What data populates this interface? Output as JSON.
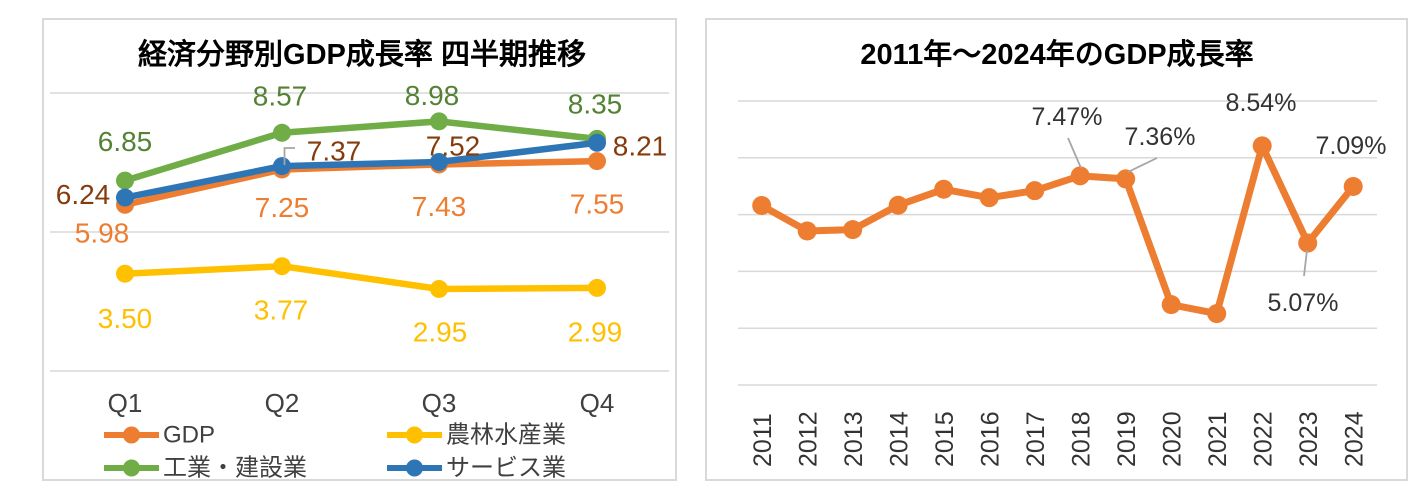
{
  "chart_data": [
    {
      "type": "line",
      "title": "経済分野別GDP成長率 四半期推移",
      "categories": [
        "Q1",
        "Q2",
        "Q3",
        "Q4"
      ],
      "series": [
        {
          "name": "GDP",
          "slug": "gdp",
          "color": "#ED7D31",
          "label_color": "#ED7D31",
          "values": [
            5.98,
            7.25,
            7.43,
            7.55
          ],
          "labels": [
            "5.98",
            "7.25",
            "7.43",
            "7.55"
          ]
        },
        {
          "name": "農林水産業",
          "slug": "agriculture",
          "color": "#FFC000",
          "label_color": "#FFC000",
          "values": [
            3.5,
            3.77,
            2.95,
            2.99
          ],
          "labels": [
            "3.50",
            "3.77",
            "2.95",
            "2.99"
          ]
        },
        {
          "name": "工業・建設業",
          "slug": "industry",
          "color": "#70AD47",
          "label_color": "#548235",
          "values": [
            6.85,
            8.57,
            8.98,
            8.35
          ],
          "labels": [
            "6.85",
            "8.57",
            "8.98",
            "8.35"
          ]
        },
        {
          "name": "サービス業",
          "slug": "services",
          "color": "#2E75B6",
          "label_color": "#843C0C",
          "values": [
            6.24,
            7.37,
            7.52,
            8.21
          ],
          "labels": [
            "6.24",
            "7.37",
            "7.52",
            "8.21"
          ]
        }
      ],
      "ylim": [
        0,
        10
      ],
      "grid": true,
      "legend_position": "bottom"
    },
    {
      "type": "line",
      "title": "2011年～2024年のGDP成長率",
      "categories": [
        "2011",
        "2012",
        "2013",
        "2014",
        "2015",
        "2016",
        "2017",
        "2018",
        "2019",
        "2020",
        "2021",
        "2022",
        "2023",
        "2024"
      ],
      "series": [
        {
          "name": "GDP成長率",
          "slug": "annual-gdp",
          "color": "#ED7D31",
          "values": [
            6.41,
            5.5,
            5.55,
            6.42,
            6.99,
            6.69,
            6.94,
            7.47,
            7.36,
            2.87,
            2.55,
            8.54,
            5.07,
            7.09
          ]
        }
      ],
      "annotations": [
        {
          "category": "2018",
          "label": "7.47%"
        },
        {
          "category": "2019",
          "label": "7.36%"
        },
        {
          "category": "2022",
          "label": "8.54%"
        },
        {
          "category": "2023",
          "label": "5.07%"
        },
        {
          "category": "2024",
          "label": "7.09%"
        }
      ],
      "ylim": [
        0,
        10
      ],
      "grid": true,
      "legend_position": "none"
    }
  ],
  "colors": {
    "gridline": "#D9D9D9",
    "leader_line": "#A6A6A6",
    "axis_text": "#404040",
    "annotation_text": "#333333",
    "title_text": "#000000",
    "card_border": "#D9D9D9"
  }
}
